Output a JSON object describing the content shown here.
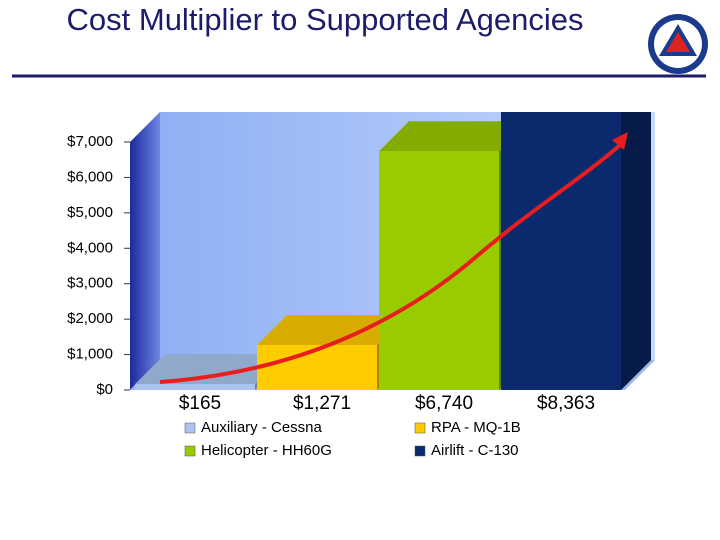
{
  "chart_data": {
    "type": "bar3d",
    "title": "Cost Multiplier to Supported Agencies",
    "series": [
      {
        "name": "Auxiliary - Cessna",
        "color": "#a9c6f0",
        "values": [
          165
        ],
        "value_labels": [
          "$165"
        ]
      },
      {
        "name": "RPA - MQ-1B",
        "color": "#ffcc00",
        "values": [
          1271
        ],
        "value_labels": [
          "$1,271"
        ]
      },
      {
        "name": "Helicopter - HH60G",
        "color": "#99cc00",
        "values": [
          6740
        ],
        "value_labels": [
          "$6,740"
        ]
      },
      {
        "name": "Airlift - C-130",
        "color": "#0b2a6e",
        "values": [
          8363
        ],
        "value_labels": [
          "$8,363"
        ]
      }
    ],
    "ylim": [
      0,
      7000
    ],
    "yticks": [
      {
        "value": 0,
        "label": "$0"
      },
      {
        "value": 1000,
        "label": "$1,000"
      },
      {
        "value": 2000,
        "label": "$2,000"
      },
      {
        "value": 3000,
        "label": "$3,000"
      },
      {
        "value": 4000,
        "label": "$4,000"
      },
      {
        "value": 5000,
        "label": "$5,000"
      },
      {
        "value": 6000,
        "label": "$6,000"
      },
      {
        "value": 7000,
        "label": "$7,000"
      }
    ]
  }
}
